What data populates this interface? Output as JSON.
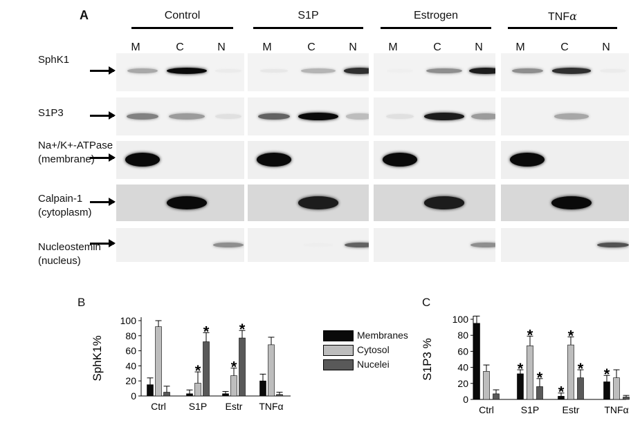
{
  "panel_letters": {
    "a": "A",
    "b": "B",
    "c": "C"
  },
  "blot": {
    "groups": [
      {
        "title": "Control",
        "lanes": [
          "M",
          "C",
          "N"
        ]
      },
      {
        "title": "S1P",
        "lanes": [
          "M",
          "C",
          "N"
        ]
      },
      {
        "title": "Estrogen",
        "lanes": [
          "M",
          "C",
          "N"
        ]
      },
      {
        "title": "TNF",
        "title_symbol": "α",
        "lanes": [
          "M",
          "C",
          "N"
        ]
      }
    ],
    "rows": [
      {
        "name": "sphk1",
        "label_line1": "SphK1",
        "label_line2": "",
        "intensity": [
          [
            0.5,
            1.0,
            0.12
          ],
          [
            0.15,
            0.45,
            0.9
          ],
          [
            0.08,
            0.6,
            0.95
          ],
          [
            0.6,
            0.9,
            0.12
          ]
        ]
      },
      {
        "name": "s1p3",
        "label_line1": "S1P3",
        "label_line2": "",
        "intensity": [
          [
            0.65,
            0.55,
            0.2
          ],
          [
            0.75,
            1.0,
            0.4
          ],
          [
            0.2,
            0.95,
            0.55
          ],
          [
            0.0,
            0.5,
            0.0
          ]
        ]
      },
      {
        "name": "na-k-atpase",
        "label_line1": "Na+/K+-ATPase",
        "label_line2": "(membrane)",
        "intensity": [
          [
            1.0,
            0.0,
            0.0
          ],
          [
            1.0,
            0.0,
            0.0
          ],
          [
            1.0,
            0.0,
            0.0
          ],
          [
            1.0,
            0.0,
            0.0
          ]
        ]
      },
      {
        "name": "calpain-1",
        "label_line1": "Calpain-1",
        "label_line2": "(cytoplasm)",
        "intensity": [
          [
            0.0,
            1.0,
            0.0
          ],
          [
            0.0,
            0.95,
            0.0
          ],
          [
            0.0,
            0.95,
            0.0
          ],
          [
            0.0,
            1.0,
            0.0
          ]
        ]
      },
      {
        "name": "nucleostemin",
        "label_line1": "Nucleostemin",
        "label_line2": "(nucleus)",
        "intensity": [
          [
            0.0,
            0.0,
            0.6
          ],
          [
            0.0,
            0.08,
            0.75
          ],
          [
            0.0,
            0.0,
            0.6
          ],
          [
            0.0,
            0.0,
            0.8
          ]
        ]
      }
    ]
  },
  "legend": [
    {
      "label": "Membranes",
      "color": "#0a0a0a"
    },
    {
      "label": "Cytosol",
      "color": "#bdbdbd"
    },
    {
      "label": "Nucelei",
      "color": "#595959"
    }
  ],
  "chart_data": [
    {
      "type": "bar",
      "ylabel": "SphK1%",
      "categories": [
        "Ctrl",
        "S1P",
        "Estr",
        "TNFα"
      ],
      "ylim": [
        0,
        100
      ],
      "yticks": [
        0,
        20,
        40,
        60,
        80,
        100
      ],
      "series": [
        {
          "name": "Membranes",
          "color": "#0a0a0a",
          "values": [
            15,
            3,
            3,
            20
          ],
          "errors": [
            9,
            5,
            3,
            9
          ]
        },
        {
          "name": "Cytosol",
          "color": "#bdbdbd",
          "values": [
            92,
            17,
            27,
            68
          ],
          "errors": [
            8,
            15,
            10,
            10
          ]
        },
        {
          "name": "Nucelei",
          "color": "#595959",
          "values": [
            5,
            72,
            77,
            2
          ],
          "errors": [
            8,
            12,
            10,
            3
          ]
        }
      ],
      "significance_marks": [
        [
          false,
          false,
          false
        ],
        [
          false,
          true,
          true
        ],
        [
          false,
          true,
          true
        ],
        [
          false,
          false,
          false
        ]
      ],
      "significance_symbol": "*"
    },
    {
      "type": "bar",
      "ylabel": "S1P3 %",
      "categories": [
        "Ctrl",
        "S1P",
        "Estr",
        "TNFα"
      ],
      "ylim": [
        0,
        100
      ],
      "yticks": [
        0,
        20,
        40,
        60,
        80,
        100
      ],
      "series": [
        {
          "name": "Membranes",
          "color": "#0a0a0a",
          "values": [
            95,
            32,
            4,
            22
          ],
          "errors": [
            9,
            5,
            4,
            8
          ]
        },
        {
          "name": "Cytosol",
          "color": "#bdbdbd",
          "values": [
            35,
            67,
            68,
            27
          ],
          "errors": [
            8,
            12,
            10,
            10
          ]
        },
        {
          "name": "Nucelei",
          "color": "#595959",
          "values": [
            7,
            16,
            27,
            3
          ],
          "errors": [
            5,
            10,
            10,
            2
          ]
        }
      ],
      "significance_marks": [
        [
          false,
          false,
          false
        ],
        [
          true,
          true,
          true
        ],
        [
          true,
          true,
          true
        ],
        [
          true,
          false,
          false
        ]
      ],
      "significance_symbol": "*"
    }
  ]
}
